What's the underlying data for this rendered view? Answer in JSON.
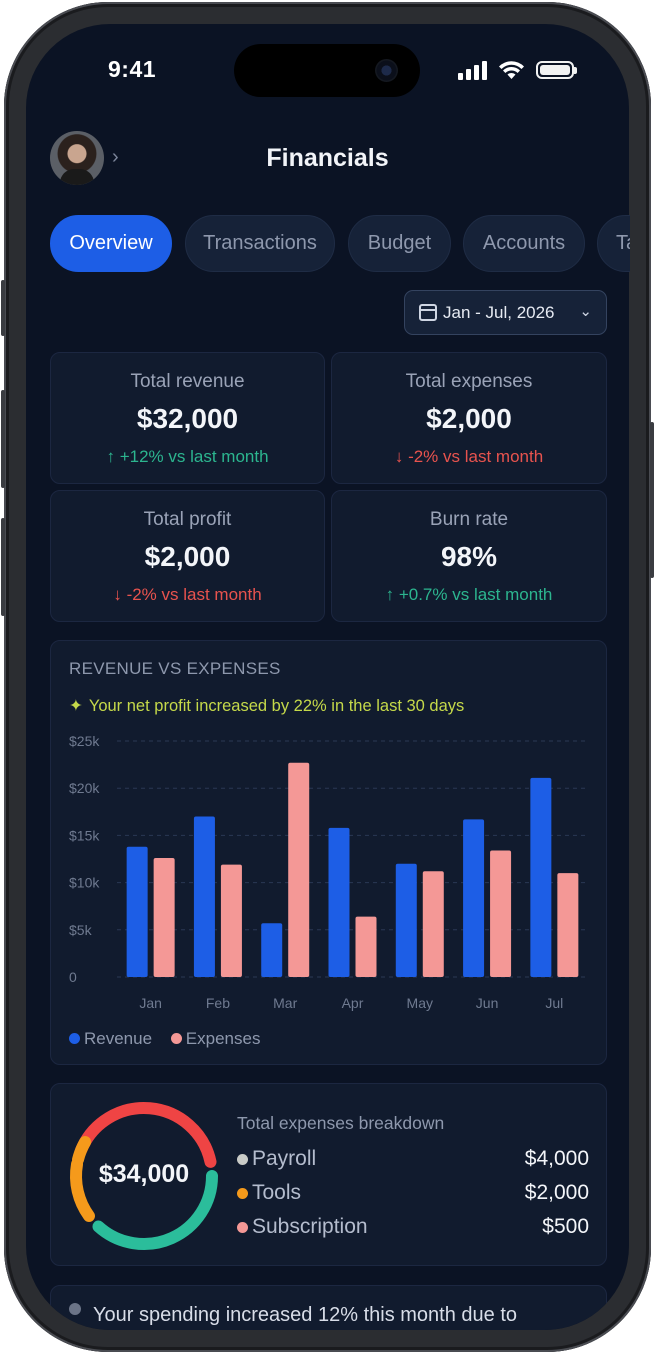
{
  "status_bar": {
    "time": "9:41"
  },
  "header": {
    "title": "Financials"
  },
  "tabs": [
    {
      "label": "Overview",
      "active": true
    },
    {
      "label": "Transactions",
      "active": false
    },
    {
      "label": "Budget",
      "active": false
    },
    {
      "label": "Accounts",
      "active": false
    },
    {
      "label": "Ta",
      "active": false
    }
  ],
  "date_range": {
    "label": "Jan - Jul, 2026"
  },
  "stats": [
    {
      "label": "Total revenue",
      "value": "$32,000",
      "change": "+12% vs last month",
      "direction": "up"
    },
    {
      "label": "Total expenses",
      "value": "$2,000",
      "change": "-2% vs last month",
      "direction": "down"
    },
    {
      "label": "Total profit",
      "value": "$2,000",
      "change": "-2% vs last month",
      "direction": "down"
    },
    {
      "label": "Burn rate",
      "value": "98%",
      "change": "+0.7% vs last month",
      "direction": "up"
    }
  ],
  "revenue_chart": {
    "heading": "REVENUE VS EXPENSES",
    "insight": "Your net profit increased by 22% in the last 30 days"
  },
  "chart_data": {
    "type": "bar",
    "categories": [
      "Jan",
      "Feb",
      "Mar",
      "Apr",
      "May",
      "Jun",
      "Jul"
    ],
    "series": [
      {
        "name": "Revenue",
        "values": [
          13800,
          17000,
          5700,
          15800,
          12000,
          16700,
          21100
        ],
        "color": "#1d5ee6"
      },
      {
        "name": "Expenses",
        "values": [
          12600,
          11900,
          22700,
          6400,
          11200,
          13400,
          11000
        ],
        "color": "#f49896"
      }
    ],
    "y_ticks": [
      "0",
      "$5k",
      "$10k",
      "$15k",
      "$20k",
      "$25k"
    ],
    "ylim": [
      0,
      25000
    ],
    "grid": true,
    "legend": "bottom-left"
  },
  "breakdown": {
    "total": "$34,000",
    "title": "Total expenses breakdown",
    "items": [
      {
        "label": "Payroll",
        "amount": "$4,000",
        "color": "#c9cbc7"
      },
      {
        "label": "Tools",
        "amount": "$2,000",
        "color": "#f59a1b"
      },
      {
        "label": "Subscription",
        "amount": "$500",
        "color": "#f49896"
      }
    ],
    "ring_colors": [
      "#ef4444",
      "#2bbd9b",
      "#f59a1b"
    ]
  },
  "note": {
    "text": "Your spending increased 12% this month due to"
  }
}
